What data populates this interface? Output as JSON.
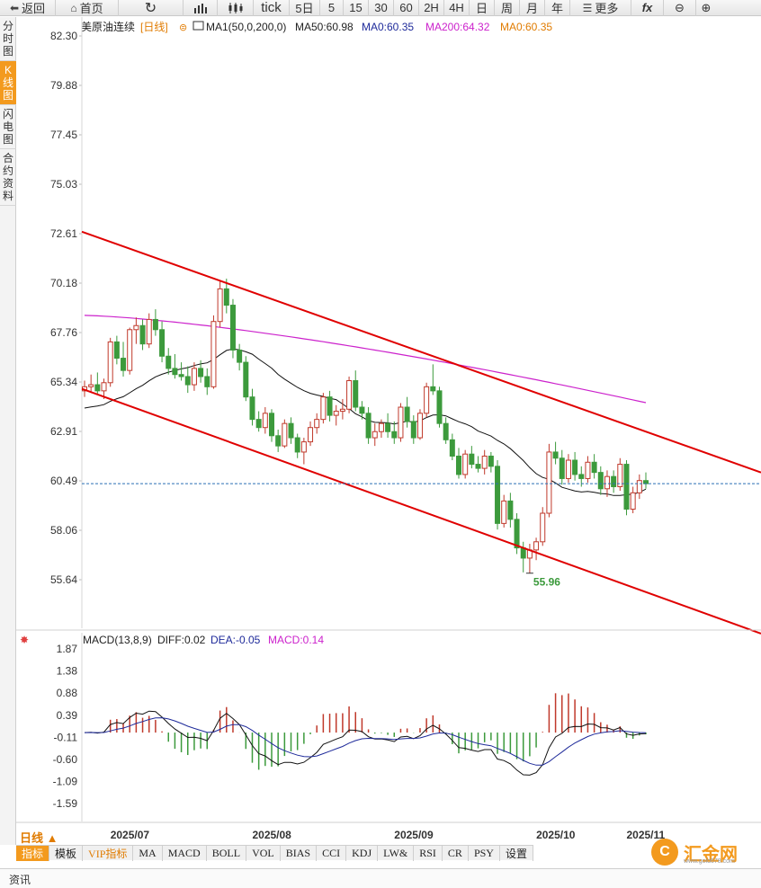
{
  "toolbar": {
    "back": "返回",
    "home": "首页",
    "tick": "tick",
    "periods": [
      "5日",
      "5",
      "15",
      "30",
      "60",
      "2H",
      "4H",
      "日",
      "周",
      "月",
      "年"
    ],
    "more": "更多"
  },
  "side_tabs": [
    "分时图",
    "K线图",
    "闪电图",
    "合约资料"
  ],
  "legend": {
    "symbol": "美原油连续",
    "period": "[日线]",
    "ma1": "MA1(50,0,200,0)",
    "ma50": "MA50:60.98",
    "ma0a": "MA0:60.35",
    "ma200": "MA200:64.32",
    "ma0b": "MA0:60.35"
  },
  "macd_legend": {
    "name": "MACD(13,8,9)",
    "diff": "DIFF:0.02",
    "dea": "DEA:-0.05",
    "macd": "MACD:0.14"
  },
  "price_axis": [
    "82.30",
    "79.88",
    "77.45",
    "75.03",
    "72.61",
    "70.18",
    "67.76",
    "65.34",
    "62.91",
    "60.49",
    "58.06",
    "55.64"
  ],
  "macd_axis": [
    "1.87",
    "1.38",
    "0.88",
    "0.39",
    "-0.11",
    "-0.60",
    "-1.09",
    "-1.59"
  ],
  "date_axis": [
    "2025/07",
    "2025/08",
    "2025/09",
    "2025/10",
    "2025/11"
  ],
  "low_label": "55.96",
  "period_button": "日线 ▲",
  "indicator_tabs": [
    "指标",
    "模板",
    "VIP指标",
    "MA",
    "MACD",
    "BOLL",
    "VOL",
    "BIAS",
    "CCI",
    "KDJ",
    "LW&",
    "RSI",
    "CR",
    "PSY",
    "设置"
  ],
  "footer_label": "资讯",
  "logo": {
    "text": "汇金网",
    "url": "www.gold678.com"
  },
  "colors": {
    "up": "#c0392b",
    "down": "#3c9a3c",
    "channel": "#e00000",
    "ma50": "#111111",
    "ma200": "#cc22cc",
    "current_line": "#2a6fb5",
    "accent": "#f39a1e"
  },
  "chart_data": {
    "type": "candlestick",
    "current_price": 60.35,
    "low_marker": 55.96,
    "y_range": [
      55.64,
      82.3
    ],
    "candles": [
      [
        64.9,
        65.4,
        64.6,
        65.1
      ],
      [
        65.1,
        65.7,
        64.8,
        65.2
      ],
      [
        65.2,
        65.8,
        64.7,
        64.9
      ],
      [
        64.9,
        65.5,
        64.5,
        65.3
      ],
      [
        65.3,
        67.5,
        65.1,
        67.3
      ],
      [
        67.3,
        67.6,
        66.2,
        66.5
      ],
      [
        66.5,
        67.3,
        65.6,
        65.9
      ],
      [
        65.9,
        68.0,
        65.7,
        67.9
      ],
      [
        67.9,
        68.5,
        67.2,
        68.1
      ],
      [
        68.1,
        68.4,
        66.9,
        67.2
      ],
      [
        67.2,
        68.7,
        67.0,
        68.4
      ],
      [
        68.4,
        68.9,
        67.6,
        67.9
      ],
      [
        67.9,
        68.3,
        66.3,
        66.6
      ],
      [
        66.6,
        67.0,
        65.7,
        66.0
      ],
      [
        66.0,
        66.7,
        65.5,
        65.7
      ],
      [
        65.7,
        66.3,
        65.4,
        65.6
      ],
      [
        65.6,
        66.1,
        64.8,
        65.2
      ],
      [
        65.2,
        66.3,
        64.9,
        66.0
      ],
      [
        66.0,
        66.4,
        65.3,
        65.6
      ],
      [
        65.6,
        66.0,
        64.7,
        65.1
      ],
      [
        65.1,
        68.6,
        65.0,
        68.3
      ],
      [
        68.3,
        70.3,
        68.0,
        69.9
      ],
      [
        69.9,
        70.4,
        68.7,
        69.1
      ],
      [
        69.1,
        69.4,
        66.5,
        66.9
      ],
      [
        66.9,
        67.2,
        65.9,
        66.3
      ],
      [
        66.3,
        66.6,
        64.4,
        64.6
      ],
      [
        64.6,
        65.0,
        63.2,
        63.5
      ],
      [
        63.5,
        63.9,
        62.9,
        63.1
      ],
      [
        63.1,
        64.1,
        62.8,
        63.8
      ],
      [
        63.8,
        64.0,
        62.4,
        62.7
      ],
      [
        62.7,
        63.0,
        61.9,
        62.2
      ],
      [
        62.2,
        63.5,
        62.1,
        63.3
      ],
      [
        63.3,
        63.6,
        62.3,
        62.6
      ],
      [
        62.6,
        62.8,
        61.6,
        61.9
      ],
      [
        61.9,
        62.6,
        61.3,
        62.4
      ],
      [
        62.4,
        63.4,
        62.2,
        63.1
      ],
      [
        63.1,
        63.8,
        62.8,
        63.5
      ],
      [
        63.5,
        64.8,
        63.3,
        64.6
      ],
      [
        64.6,
        64.9,
        63.4,
        63.7
      ],
      [
        63.7,
        64.2,
        63.2,
        63.9
      ],
      [
        63.9,
        64.5,
        63.5,
        64.0
      ],
      [
        64.0,
        65.6,
        63.8,
        65.4
      ],
      [
        65.4,
        65.9,
        63.9,
        64.1
      ],
      [
        64.1,
        64.4,
        63.5,
        63.8
      ],
      [
        63.8,
        64.1,
        62.3,
        62.6
      ],
      [
        62.6,
        63.3,
        62.2,
        62.9
      ],
      [
        62.9,
        63.5,
        62.6,
        63.3
      ],
      [
        63.3,
        63.8,
        62.6,
        62.9
      ],
      [
        62.9,
        63.4,
        62.3,
        62.6
      ],
      [
        62.6,
        64.3,
        62.4,
        64.1
      ],
      [
        64.1,
        64.6,
        63.1,
        63.4
      ],
      [
        63.4,
        63.7,
        62.3,
        62.6
      ],
      [
        62.6,
        64.0,
        62.5,
        63.8
      ],
      [
        63.8,
        65.3,
        63.6,
        65.1
      ],
      [
        65.1,
        66.2,
        64.7,
        64.9
      ],
      [
        64.9,
        65.1,
        63.1,
        63.3
      ],
      [
        63.3,
        63.6,
        62.3,
        62.5
      ],
      [
        62.5,
        62.8,
        61.5,
        61.7
      ],
      [
        61.7,
        62.1,
        60.6,
        60.8
      ],
      [
        60.8,
        62.0,
        60.6,
        61.8
      ],
      [
        61.8,
        62.2,
        61.1,
        61.3
      ],
      [
        61.3,
        61.7,
        60.9,
        61.1
      ],
      [
        61.1,
        62.0,
        60.8,
        61.7
      ],
      [
        61.7,
        61.9,
        60.9,
        61.2
      ],
      [
        61.2,
        61.5,
        58.1,
        58.4
      ],
      [
        58.4,
        59.8,
        58.2,
        59.5
      ],
      [
        59.5,
        59.9,
        58.2,
        58.6
      ],
      [
        58.6,
        58.9,
        56.9,
        57.2
      ],
      [
        57.2,
        57.5,
        56.0,
        56.7
      ],
      [
        56.7,
        57.4,
        55.96,
        57.1
      ],
      [
        57.1,
        57.7,
        56.6,
        57.5
      ],
      [
        57.5,
        59.2,
        57.3,
        58.9
      ],
      [
        58.9,
        62.3,
        58.7,
        61.9
      ],
      [
        61.9,
        62.4,
        61.3,
        61.6
      ],
      [
        61.6,
        62.0,
        60.3,
        60.6
      ],
      [
        60.6,
        61.8,
        60.4,
        61.5
      ],
      [
        61.5,
        61.9,
        60.5,
        60.8
      ],
      [
        60.8,
        61.2,
        60.2,
        60.6
      ],
      [
        60.6,
        61.7,
        60.4,
        61.4
      ],
      [
        61.4,
        61.8,
        60.6,
        60.9
      ],
      [
        60.9,
        61.2,
        59.8,
        60.1
      ],
      [
        60.1,
        61.0,
        59.7,
        60.7
      ],
      [
        60.7,
        61.0,
        59.9,
        60.2
      ],
      [
        60.2,
        61.6,
        60.0,
        61.3
      ],
      [
        61.3,
        61.5,
        58.8,
        59.1
      ],
      [
        59.1,
        60.2,
        58.9,
        59.9
      ],
      [
        59.9,
        60.8,
        59.6,
        60.5
      ],
      [
        60.5,
        60.9,
        60.1,
        60.35
      ]
    ],
    "channel_upper": [
      [
        72.7,
        0
      ],
      [
        60.9,
        1
      ]
    ],
    "channel_lower": [
      [
        65.0,
        0
      ],
      [
        53.0,
        1
      ]
    ],
    "macd_range": [
      -1.85,
      1.87
    ]
  }
}
